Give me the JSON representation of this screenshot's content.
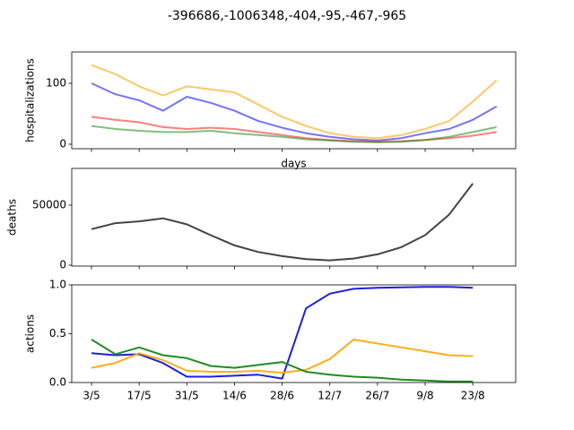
{
  "title": "-396686,-1006348,-404,-95,-467,-965",
  "chart_data": [
    {
      "type": "line",
      "ylabel": "hospitalizations",
      "xlabel": "days",
      "x": [
        0,
        7,
        14,
        21,
        28,
        35,
        42,
        49,
        56,
        63,
        70,
        77,
        84,
        91,
        98,
        105,
        112,
        119
      ],
      "xlim": [
        -5.8,
        124.6
      ],
      "xticks": [
        0,
        14,
        28,
        42,
        56,
        70,
        84,
        98,
        112
      ],
      "ylim": [
        -7.4,
        151.5
      ],
      "yticks": [
        0,
        100
      ],
      "series": [
        {
          "color": "#ffa500",
          "opacity": 0.6,
          "values": [
            130,
            115,
            95,
            80,
            95,
            90,
            85,
            65,
            45,
            30,
            18,
            12,
            10,
            15,
            25,
            38,
            70,
            105
          ]
        },
        {
          "color": "#0000ff",
          "opacity": 0.55,
          "values": [
            100,
            82,
            72,
            55,
            78,
            68,
            55,
            38,
            27,
            18,
            12,
            8,
            6,
            10,
            18,
            25,
            40,
            62
          ]
        },
        {
          "color": "#ff0000",
          "opacity": 0.5,
          "values": [
            45,
            40,
            36,
            28,
            25,
            27,
            25,
            20,
            15,
            10,
            7,
            5,
            4,
            5,
            7,
            10,
            14,
            20
          ]
        },
        {
          "color": "#008000",
          "opacity": 0.5,
          "values": [
            30,
            25,
            22,
            20,
            20,
            22,
            18,
            15,
            12,
            8,
            6,
            4,
            3,
            4,
            7,
            12,
            20,
            28
          ]
        }
      ]
    },
    {
      "type": "line",
      "ylabel": "deaths",
      "x": [
        0,
        7,
        14,
        21,
        28,
        35,
        42,
        49,
        56,
        63,
        70,
        77,
        84,
        91,
        98,
        105,
        112
      ],
      "xlim": [
        -5.8,
        124.6
      ],
      "xticks": [
        0,
        14,
        28,
        42,
        56,
        70,
        84,
        98,
        112
      ],
      "ylim": [
        -750,
        80600
      ],
      "yticks": [
        0,
        50000
      ],
      "series": [
        {
          "color": "#222222",
          "opacity": 0.85,
          "values": [
            30000,
            35000,
            36500,
            39000,
            34000,
            25000,
            16500,
            11000,
            7500,
            5000,
            4000,
            5500,
            9000,
            15000,
            25000,
            42000,
            68000
          ]
        }
      ]
    },
    {
      "type": "line",
      "ylabel": "actions",
      "x": [
        0,
        7,
        14,
        21,
        28,
        35,
        42,
        49,
        56,
        63,
        70,
        77,
        84,
        91,
        98,
        105,
        112
      ],
      "xlim": [
        -5.8,
        124.6
      ],
      "xticks": [
        {
          "value": 0,
          "label": "3/5"
        },
        {
          "value": 14,
          "label": "17/5"
        },
        {
          "value": 28,
          "label": "31/5"
        },
        {
          "value": 42,
          "label": "14/6"
        },
        {
          "value": 56,
          "label": "28/6"
        },
        {
          "value": 70,
          "label": "12/7"
        },
        {
          "value": 84,
          "label": "26/7"
        },
        {
          "value": 98,
          "label": "9/8"
        },
        {
          "value": 112,
          "label": "23/8"
        }
      ],
      "ylim": [
        0,
        1
      ],
      "yticks": [
        {
          "value": 0,
          "label": "0.0"
        },
        {
          "value": 0.5,
          "label": "0.5"
        },
        {
          "value": 1,
          "label": "1.0"
        }
      ],
      "series": [
        {
          "color": "#1f1fdd",
          "opacity": 1,
          "values": [
            0.3,
            0.28,
            0.29,
            0.2,
            0.06,
            0.06,
            0.07,
            0.08,
            0.04,
            0.76,
            0.91,
            0.96,
            0.97,
            0.975,
            0.98,
            0.98,
            0.97
          ]
        },
        {
          "color": "#ffa500",
          "opacity": 0.9,
          "values": [
            0.15,
            0.2,
            0.3,
            0.23,
            0.12,
            0.11,
            0.11,
            0.12,
            0.1,
            0.13,
            0.24,
            0.44,
            0.4,
            0.36,
            0.32,
            0.28,
            0.27
          ]
        },
        {
          "color": "#228b22",
          "opacity": 1,
          "values": [
            0.44,
            0.29,
            0.36,
            0.28,
            0.25,
            0.17,
            0.15,
            0.18,
            0.21,
            0.11,
            0.08,
            0.06,
            0.05,
            0.03,
            0.02,
            0.01,
            0.01
          ]
        }
      ]
    }
  ]
}
